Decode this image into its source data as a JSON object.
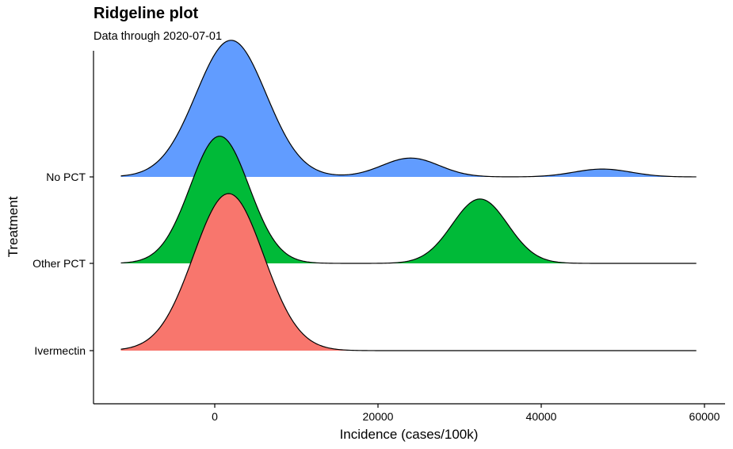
{
  "header": {
    "title": "Ridgeline plot",
    "subtitle": "Data through 2020-07-01"
  },
  "chart_data": {
    "type": "ridgeline",
    "title": "Ridgeline plot",
    "subtitle": "Data through 2020-07-01",
    "xlabel": "Incidence (cases/100k)",
    "ylabel": "Treatment",
    "xlim": [
      -13000,
      62000
    ],
    "x_ticks": [
      0,
      20000,
      40000,
      60000
    ],
    "x_tick_labels": [
      "0",
      "20000",
      "40000",
      "60000"
    ],
    "x_range_drawn": [
      -11500,
      59000
    ],
    "categories": [
      "Ivermectin",
      "Other PCT",
      "No PCT"
    ],
    "legend": "none",
    "grid": false,
    "series": [
      {
        "name": "Ivermectin",
        "color": "#F8766D",
        "components": [
          {
            "mean": 1700,
            "sd": 4300,
            "peak": 1.0
          }
        ]
      },
      {
        "name": "Other PCT",
        "color": "#00BA38",
        "components": [
          {
            "mean": 600,
            "sd": 3600,
            "peak": 0.81
          },
          {
            "mean": 32500,
            "sd": 3400,
            "peak": 0.41
          }
        ]
      },
      {
        "name": "No PCT",
        "color": "#619CFF",
        "components": [
          {
            "mean": 2000,
            "sd": 4300,
            "peak": 0.87
          },
          {
            "mean": 24000,
            "sd": 3500,
            "peak": 0.12
          },
          {
            "mean": 47500,
            "sd": 3500,
            "peak": 0.05
          }
        ]
      }
    ]
  }
}
